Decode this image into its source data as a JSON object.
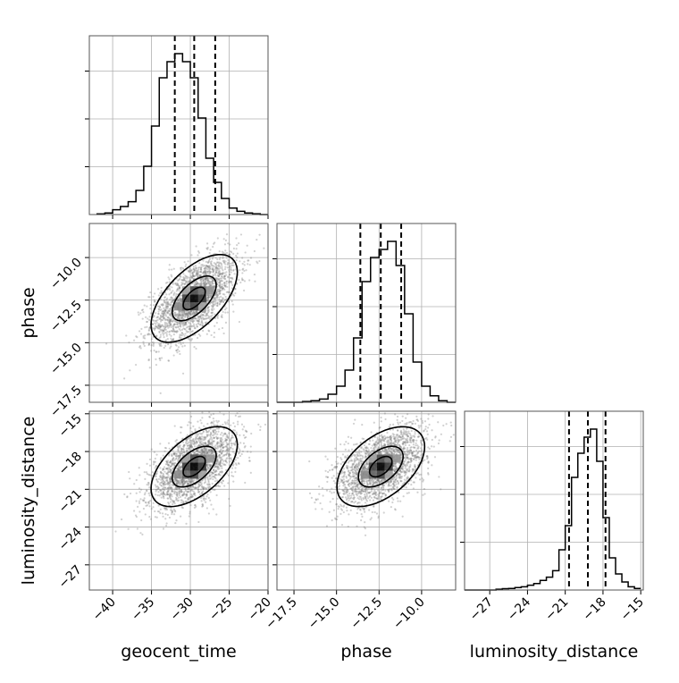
{
  "chart_data": {
    "type": "corner",
    "parameters": [
      "geocent_time",
      "phase",
      "luminosity_distance"
    ],
    "axis_labels": {
      "geocent_time": "geocent_time",
      "phase": "phase",
      "luminosity_distance": "luminosity_distance"
    },
    "ranges": {
      "geocent_time": [
        -43,
        -20
      ],
      "phase": [
        -18.5,
        -8.0
      ],
      "luminosity_distance": [
        -29.0,
        -14.8
      ]
    },
    "ticks": {
      "geocent_time": [
        {
          "v": -40,
          "t": "−40"
        },
        {
          "v": -35,
          "t": "−35"
        },
        {
          "v": -30,
          "t": "−30"
        },
        {
          "v": -25,
          "t": "−25"
        },
        {
          "v": -20,
          "t": "−20"
        }
      ],
      "phase": [
        {
          "v": -17.5,
          "t": "−17.5"
        },
        {
          "v": -15.0,
          "t": "−15.0"
        },
        {
          "v": -12.5,
          "t": "−12.5"
        },
        {
          "v": -10.0,
          "t": "−10.0"
        }
      ],
      "luminosity_distance": [
        {
          "v": -27,
          "t": "−27"
        },
        {
          "v": -24,
          "t": "−24"
        },
        {
          "v": -21,
          "t": "−21"
        },
        {
          "v": -18,
          "t": "−18"
        },
        {
          "v": -15,
          "t": "−15"
        }
      ]
    },
    "quantiles": {
      "geocent_time": [
        -32.0,
        -29.5,
        -26.8
      ],
      "phase": [
        -13.6,
        -12.4,
        -11.2
      ],
      "luminosity_distance": [
        -20.7,
        -19.2,
        -17.8
      ]
    },
    "histograms": {
      "geocent_time": {
        "edges": [
          -42,
          -41,
          -40,
          -39,
          -38,
          -37,
          -36,
          -35,
          -34,
          -33,
          -32,
          -31,
          -30,
          -29,
          -28,
          -27,
          -26,
          -25,
          -24,
          -23,
          -22,
          -21,
          -20
        ],
        "counts": [
          0.004,
          0.01,
          0.03,
          0.05,
          0.08,
          0.15,
          0.3,
          0.55,
          0.85,
          0.95,
          1.0,
          0.95,
          0.85,
          0.6,
          0.35,
          0.2,
          0.1,
          0.04,
          0.02,
          0.01,
          0.005,
          0
        ]
      },
      "phase": {
        "edges": [
          -18.5,
          -18.0,
          -17.5,
          -17.0,
          -16.5,
          -16.0,
          -15.5,
          -15.0,
          -14.5,
          -14.0,
          -13.5,
          -13.0,
          -12.5,
          -12.0,
          -11.5,
          -11.0,
          -10.5,
          -10.0,
          -9.5,
          -9.0,
          -8.5,
          -8.0
        ],
        "counts": [
          0,
          0,
          0,
          0.005,
          0.01,
          0.02,
          0.05,
          0.1,
          0.2,
          0.4,
          0.75,
          0.9,
          0.95,
          1.0,
          0.85,
          0.55,
          0.25,
          0.1,
          0.04,
          0.01,
          0
        ]
      },
      "luminosity_distance": {
        "edges": [
          -29.0,
          -28.5,
          -28.0,
          -27.5,
          -27.0,
          -26.5,
          -26.0,
          -25.5,
          -25.0,
          -24.5,
          -24.0,
          -23.5,
          -23.0,
          -22.5,
          -22.0,
          -21.5,
          -21.0,
          -20.5,
          -20.0,
          -19.5,
          -19.0,
          -18.5,
          -18.0,
          -17.5,
          -17.0,
          -16.5,
          -16.0,
          -15.5,
          -15.0
        ],
        "counts": [
          0,
          0,
          0,
          0,
          0,
          0.005,
          0.008,
          0.01,
          0.015,
          0.02,
          0.03,
          0.04,
          0.06,
          0.08,
          0.12,
          0.25,
          0.4,
          0.7,
          0.85,
          0.95,
          1.0,
          0.8,
          0.45,
          0.2,
          0.1,
          0.05,
          0.02,
          0.01
        ]
      }
    },
    "joint_2d": [
      {
        "x": "geocent_time",
        "y": "phase",
        "mean": [
          -29.5,
          -12.4
        ],
        "std": [
          2.8,
          1.3
        ],
        "corr": 0.6,
        "scatter_points": 2200
      },
      {
        "x": "geocent_time",
        "y": "luminosity_distance",
        "mean": [
          -29.5,
          -19.2
        ],
        "std": [
          2.8,
          1.6
        ],
        "corr": 0.55,
        "scatter_points": 2200
      },
      {
        "x": "phase",
        "y": "luminosity_distance",
        "mean": [
          -12.4,
          -19.2
        ],
        "std": [
          1.3,
          1.6
        ],
        "corr": 0.5,
        "scatter_points": 2200
      }
    ],
    "contour_levels": [
      0.12,
      0.4,
      0.86
    ],
    "grid": true,
    "colors": {
      "hist": "#000000",
      "contour": "#000000",
      "scatter": "#7a7a7a",
      "grid": "#b0b0b0",
      "axes": "#555555"
    }
  }
}
